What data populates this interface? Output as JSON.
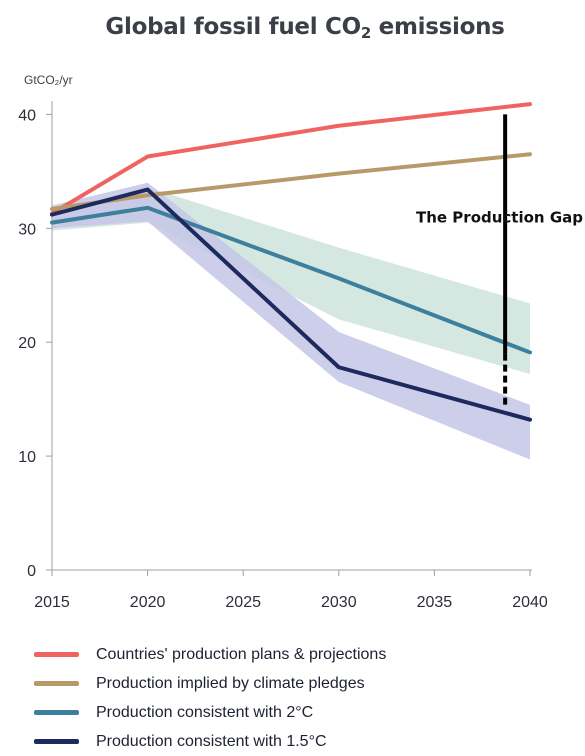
{
  "title": {
    "prefix": "Global fossil fuel CO",
    "subscript": "2",
    "suffix": " emissions"
  },
  "chart_data": {
    "type": "line",
    "ylabel": "GtCO₂/yr",
    "xlabel": "",
    "x_ticks": [
      2015,
      2020,
      2025,
      2030,
      2035,
      2040
    ],
    "y_ticks": [
      0,
      10,
      20,
      30,
      40
    ],
    "xlim": [
      2015,
      2040
    ],
    "ylim": [
      0,
      41
    ],
    "grid": false,
    "legend_position": "bottom",
    "series": [
      {
        "name": "Countries' production plans & projections",
        "color": "#ef6461",
        "x": [
          2015,
          2020,
          2030,
          2040
        ],
        "y": [
          31.3,
          36.3,
          39.0,
          40.9
        ]
      },
      {
        "name": "Production implied by climate pledges",
        "color": "#b89a6a",
        "x": [
          2015,
          2020,
          2030,
          2040
        ],
        "y": [
          31.7,
          32.9,
          34.8,
          36.5
        ]
      },
      {
        "name": "Production consistent with 2°C",
        "color": "#3d7f9c",
        "x": [
          2015,
          2020,
          2030,
          2040
        ],
        "y": [
          30.5,
          31.8,
          25.6,
          19.1
        ],
        "band_color": "#cfe6de",
        "band_low": [
          29.8,
          30.5,
          22.0,
          17.2
        ],
        "band_high": [
          31.5,
          33.6,
          28.3,
          23.4
        ]
      },
      {
        "name": "Production consistent with 1.5°C",
        "color": "#1d2a5e",
        "x": [
          2015,
          2020,
          2030,
          2040
        ],
        "y": [
          31.2,
          33.4,
          17.8,
          13.2
        ],
        "band_color": "#c4c5e6",
        "band_low": [
          30.0,
          30.6,
          16.5,
          9.7
        ],
        "band_high": [
          32.0,
          34.0,
          20.9,
          14.5
        ]
      }
    ],
    "annotation": {
      "text": "The Production Gap",
      "x": 2038.7,
      "y_from": 14.2,
      "y_to": 40.0,
      "dashed_below": 19.0
    }
  }
}
